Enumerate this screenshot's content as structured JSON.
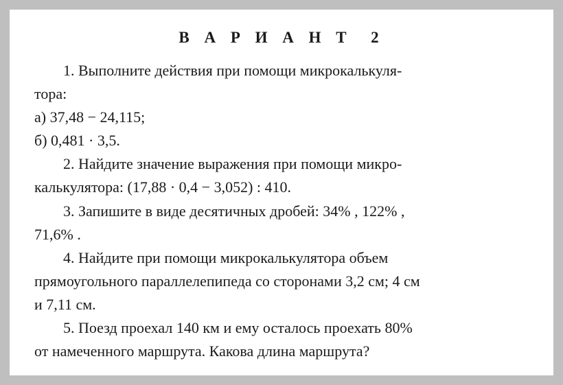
{
  "title": "В А Р И А Н Т  2",
  "problems": {
    "p1_line1": "1. Выполните действия при помощи микрокалькуля-",
    "p1_line2": "тора:",
    "p1_a": "а) 37,48 − 24,115;",
    "p1_b": "б) 0,481 · 3,5.",
    "p2_line1": "2. Найдите значение выражения при помощи микро-",
    "p2_line2": "калькулятора: (17,88 · 0,4 − 3,052) : 410.",
    "p3_line1_a": "3. Запишите в виде десятичных дробей: ",
    "p3_line1_b": "34% ,",
    "p3_line1_c": " ",
    "p3_line1_d": "122% ,",
    "p3_line2": "71,6% .",
    "p4_line1": "4. Найдите при помощи микрокалькулятора объем",
    "p4_line2": "прямоугольного параллелепипеда со сторонами 3,2 см; 4 см",
    "p4_line3": "и 7,11 см.",
    "p5_line1": "5. Поезд проехал 140 км и ему осталось проехать 80%",
    "p5_line2": "от намеченного маршрута. Какова длина маршрута?"
  },
  "style": {
    "background_outer": "#bfbfbf",
    "background_page": "#ffffff",
    "text_color": "#1a1a1a",
    "font_family": "Georgia, Times New Roman, serif",
    "title_fontsize": 23,
    "body_fontsize": 22,
    "title_letter_spacing": 8,
    "line_height": 1.55
  }
}
